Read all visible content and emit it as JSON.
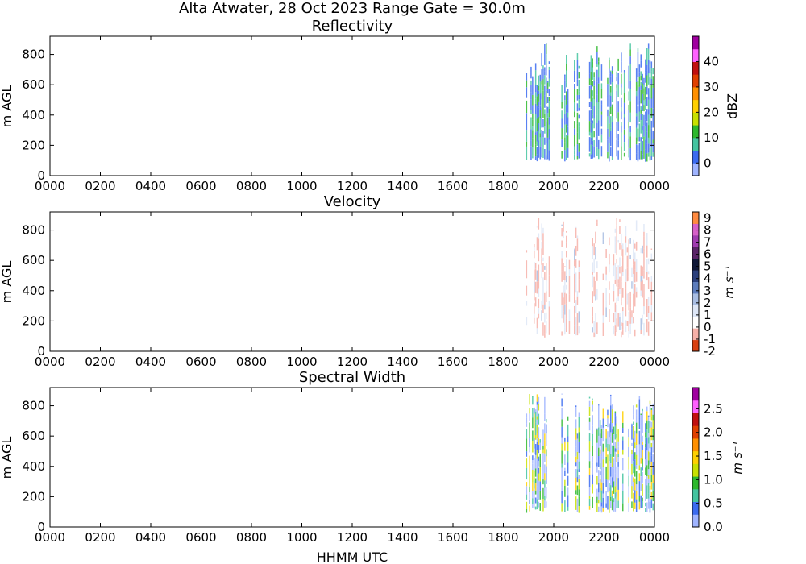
{
  "suptitle": "Alta Atwater, 28 Oct 2023 Range Gate = 30.0m",
  "colors": {
    "reflectivity": [
      "#9fb4ff",
      "#3b6bf0",
      "#44c4a0",
      "#2db82d",
      "#c8e000",
      "#ffd000",
      "#ff9000",
      "#e04000",
      "#c01010",
      "#ff60ff",
      "#a000a0"
    ],
    "velocity": [
      "#d84010",
      "#f6b0a8",
      "#ffffff",
      "#dde6f6",
      "#a8bde2",
      "#5c7cbc",
      "#2a3f7c",
      "#101838",
      "#5a2468",
      "#a03cb0",
      "#d660c8",
      "#ff8a40"
    ],
    "spectral_width": [
      "#9fb4ff",
      "#3b6bf0",
      "#44c4a0",
      "#2db82d",
      "#c8e000",
      "#ffd000",
      "#ff9000",
      "#e04000",
      "#c01010",
      "#ff60ff",
      "#a000a0"
    ]
  },
  "chart_data": [
    {
      "type": "heatmap",
      "title": "Reflectivity",
      "ylabel": "m AGL",
      "xlabel": "",
      "x_ticks": [
        "0000",
        "0200",
        "0400",
        "0600",
        "0800",
        "1000",
        "1200",
        "1400",
        "1600",
        "1800",
        "2000",
        "2200",
        "0000"
      ],
      "y_ticks": [
        "0",
        "200",
        "400",
        "600",
        "800"
      ],
      "ylim": [
        0,
        920
      ],
      "colorbar": {
        "label": "dBZ",
        "min": -5,
        "max": 50,
        "ticks": [
          "0",
          "10",
          "20",
          "30",
          "40"
        ]
      },
      "data_extent_hours": [
        [
          18.9,
          19.85
        ],
        [
          20.3,
          20.6
        ],
        [
          20.8,
          21.0
        ],
        [
          21.4,
          23.95
        ]
      ],
      "typical_value_range": [
        0,
        15
      ]
    },
    {
      "type": "heatmap",
      "title": "Velocity",
      "ylabel": "m AGL",
      "xlabel": "",
      "x_ticks": [
        "0000",
        "0200",
        "0400",
        "0600",
        "0800",
        "1000",
        "1200",
        "1400",
        "1600",
        "1800",
        "2000",
        "2200",
        "0000"
      ],
      "y_ticks": [
        "0",
        "200",
        "400",
        "600",
        "800"
      ],
      "ylim": [
        0,
        920
      ],
      "colorbar": {
        "label": "m s⁻¹",
        "min": -2,
        "max": 9.5,
        "ticks": [
          "-2",
          "-1",
          "0",
          "1",
          "2",
          "3",
          "4",
          "5",
          "6",
          "7",
          "8",
          "9"
        ]
      },
      "data_extent_hours": [
        [
          18.9,
          19.85
        ],
        [
          20.3,
          20.6
        ],
        [
          20.8,
          21.0
        ],
        [
          21.4,
          23.95
        ]
      ],
      "typical_value_range": [
        -1,
        2
      ]
    },
    {
      "type": "heatmap",
      "title": "Spectral Width",
      "ylabel": "m AGL",
      "xlabel": "HHMM UTC",
      "x_ticks": [
        "0000",
        "0200",
        "0400",
        "0600",
        "0800",
        "1000",
        "1200",
        "1400",
        "1600",
        "1800",
        "2000",
        "2200",
        "0000"
      ],
      "y_ticks": [
        "0",
        "200",
        "400",
        "600",
        "800"
      ],
      "ylim": [
        0,
        920
      ],
      "colorbar": {
        "label": "m s⁻¹",
        "min": 0,
        "max": 2.95,
        "ticks": [
          "0.0",
          "0.5",
          "1.0",
          "1.5",
          "2.0",
          "2.5"
        ]
      },
      "data_extent_hours": [
        [
          18.9,
          19.85
        ],
        [
          20.3,
          20.6
        ],
        [
          20.8,
          21.0
        ],
        [
          21.4,
          23.95
        ]
      ],
      "typical_value_range": [
        0,
        1.5
      ]
    }
  ]
}
